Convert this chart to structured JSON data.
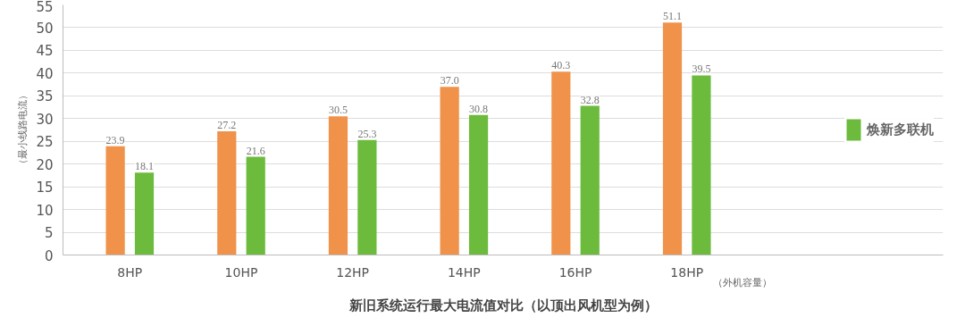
{
  "chart_data": {
    "type": "bar",
    "title": "新旧系统运行最大电流值对比（以顶出风机型为例）",
    "ylabel": "（最小线路电流）",
    "xlabel": "（外机容量）",
    "categories": [
      "8HP",
      "10HP",
      "12HP",
      "14HP",
      "16HP",
      "18HP"
    ],
    "series": [
      {
        "color": "#f0924a",
        "values": [
          23.9,
          27.2,
          30.5,
          37.0,
          40.3,
          51.1
        ],
        "value_labels": [
          "23.9",
          "27.2",
          "30.5",
          "37.0",
          "40.3",
          "51.1"
        ]
      },
      {
        "name": "焕新多联机",
        "color": "#6cbb3c",
        "values": [
          18.1,
          21.6,
          25.3,
          30.8,
          32.8,
          39.5
        ],
        "value_labels": [
          "18.1",
          "21.6",
          "25.3",
          "30.8",
          "32.8",
          "39.5"
        ]
      }
    ],
    "ylim": [
      0,
      55
    ],
    "yticks": [
      0,
      5,
      10,
      15,
      20,
      25,
      30,
      35,
      40,
      45,
      50,
      55
    ],
    "grid": "y",
    "legend": "right"
  }
}
